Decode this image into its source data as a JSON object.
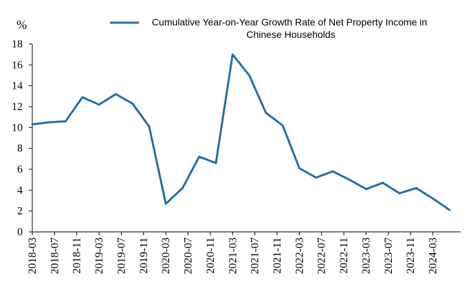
{
  "chart_data": {
    "type": "line",
    "unit_label": "%",
    "legend_position": "top",
    "grid": false,
    "ylim": [
      0,
      18
    ],
    "yticks": [
      0,
      2,
      4,
      6,
      8,
      10,
      12,
      14,
      16,
      18
    ],
    "xlim": [
      "2018-03",
      "2024-08"
    ],
    "xticks": [
      "2018-03",
      "2018-07",
      "2018-11",
      "2019-03",
      "2019-07",
      "2019-11",
      "2020-03",
      "2020-07",
      "2020-11",
      "2021-03",
      "2021-07",
      "2021-11",
      "2022-03",
      "2022-07",
      "2022-11",
      "2023-03",
      "2023-07",
      "2023-11",
      "2024-03"
    ],
    "series": [
      {
        "name": "Cumulative Year-on-Year Growth Rate of Net Property Income in Chinese Households",
        "color": "#1f6fa6",
        "points": [
          [
            "2018-03",
            10.3
          ],
          [
            "2018-06",
            10.5
          ],
          [
            "2018-09",
            10.6
          ],
          [
            "2018-12",
            12.9
          ],
          [
            "2019-03",
            12.2
          ],
          [
            "2019-06",
            13.2
          ],
          [
            "2019-09",
            12.3
          ],
          [
            "2019-12",
            10.1
          ],
          [
            "2020-03",
            2.7
          ],
          [
            "2020-06",
            4.2
          ],
          [
            "2020-09",
            7.2
          ],
          [
            "2020-12",
            6.6
          ],
          [
            "2021-03",
            17.0
          ],
          [
            "2021-06",
            15.0
          ],
          [
            "2021-09",
            11.4
          ],
          [
            "2021-12",
            10.2
          ],
          [
            "2022-03",
            6.1
          ],
          [
            "2022-06",
            5.2
          ],
          [
            "2022-09",
            5.8
          ],
          [
            "2022-12",
            5.0
          ],
          [
            "2023-03",
            4.1
          ],
          [
            "2023-06",
            4.7
          ],
          [
            "2023-09",
            3.7
          ],
          [
            "2023-12",
            4.2
          ],
          [
            "2024-03",
            3.2
          ],
          [
            "2024-06",
            2.1
          ]
        ]
      }
    ]
  }
}
